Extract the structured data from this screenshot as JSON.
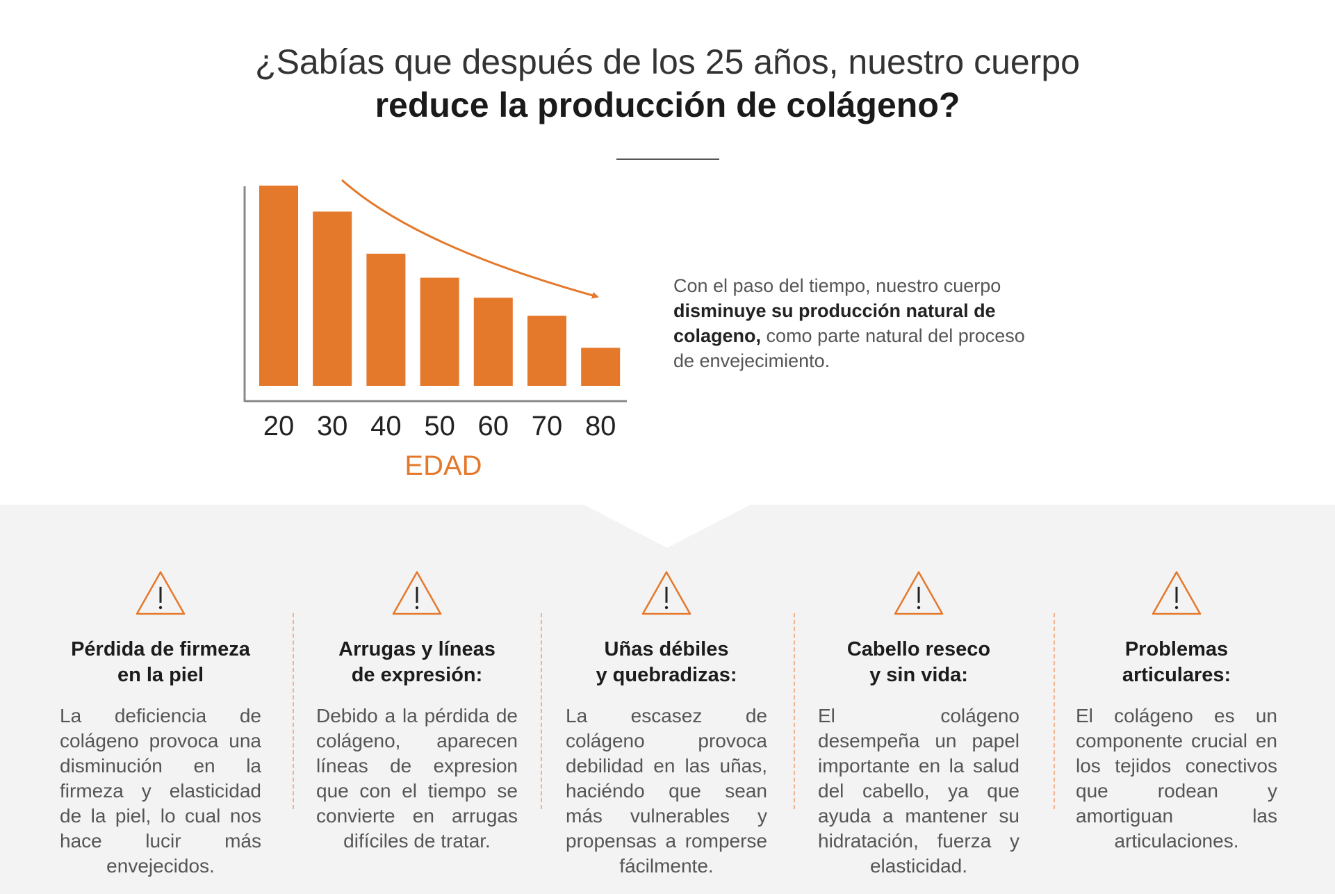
{
  "headline": {
    "line1": "¿Sabías que después de los 25 años, nuestro cuerpo",
    "line2": "reduce la producción de colágeno?"
  },
  "intro": {
    "text_before": "Con el paso del tiempo, nuestro cuerpo",
    "text_bold": "disminuye su producción natural de colageno,",
    "text_after": "como parte natural del proceso de envejecimiento."
  },
  "chart_data": {
    "type": "bar",
    "categories": [
      "20",
      "30",
      "40",
      "50",
      "60",
      "70",
      "80"
    ],
    "values": [
      100,
      87,
      66,
      54,
      44,
      35,
      19
    ],
    "xlabel": "EDAD",
    "ylabel": "",
    "ylim": [
      0,
      100
    ],
    "bar_color": "#e4782b",
    "trend_arrow": "decreasing",
    "grid": false
  },
  "cards": [
    {
      "title_line1": "Pérdida de firmeza",
      "title_line2": "en la piel",
      "text": "La deficiencia de colágeno provoca una disminución en la firmeza y elasticidad de la piel, lo cual nos hace lucir más envejecidos.",
      "icon": "warning-triangle-icon"
    },
    {
      "title_line1": "Arrugas y líneas",
      "title_line2": "de expresión:",
      "text": "Debido a la pérdida de colágeno, aparecen líneas de expresion que con el tiempo se convierte en arrugas difíciles de tratar.",
      "icon": "warning-triangle-icon"
    },
    {
      "title_line1": "Uñas débiles",
      "title_line2": "y quebradizas:",
      "text": "La escasez de colágeno provoca debilidad en las uñas, haciéndo que sean más vulnerables y propensas a romperse fácilmente.",
      "icon": "warning-triangle-icon"
    },
    {
      "title_line1": "Cabello reseco",
      "title_line2": "y sin vida:",
      "text": "El colágeno desempeña un papel importante en la salud del cabello, ya que ayuda a mantener su hidratación, fuerza y elasticidad.",
      "icon": "warning-triangle-icon"
    },
    {
      "title_line1": "Problemas",
      "title_line2": "articulares:",
      "text": "El colágeno es un componente crucial en los tejidos conectivos que rodean y amortiguan las articulaciones.",
      "icon": "warning-triangle-icon"
    }
  ],
  "colors": {
    "accent": "#e4782b",
    "separator": "#efb38d",
    "panel_background": "#f3f3f3"
  }
}
